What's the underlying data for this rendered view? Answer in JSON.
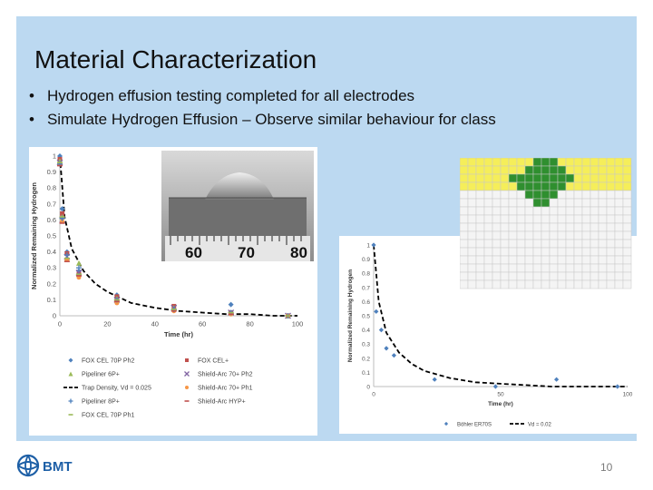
{
  "slide": {
    "title": "Material Characterization",
    "bullets": [
      "Hydrogen effusion testing completed for all electrodes",
      "Simulate Hydrogen Effusion – Observe similar behaviour for class"
    ],
    "page_number": "10",
    "logo_text": "BMT",
    "ruler_labels": [
      "60",
      "70",
      "80"
    ]
  },
  "colors": {
    "panel_bg": "#bcd9f1",
    "series_blue": "#4f81bd",
    "series_red": "#c0504d",
    "series_purple": "#8064a2",
    "series_orange": "#f79646",
    "series_green": "#9bbb59",
    "series_gray": "#7f7f7f",
    "fit_line": "#000000",
    "grid_yellow": "#f5ee5a",
    "grid_green": "#2f8f2f",
    "logo_blue": "#1d5fa6"
  },
  "chart_data": [
    {
      "type": "scatter",
      "xlabel": "Time (hr)",
      "ylabel": "Normalized Remaining Hydrogen",
      "xlim": [
        0,
        100
      ],
      "ylim": [
        0,
        1
      ],
      "xticks": [
        0,
        20,
        40,
        60,
        80,
        100
      ],
      "yticks": [
        0,
        0.1,
        0.2,
        0.3,
        0.4,
        0.5,
        0.6,
        0.7,
        0.8,
        0.9,
        1
      ],
      "legend_position": "bottom",
      "series": [
        {
          "name": "FOX CEL 70P Ph2",
          "marker": "diamond",
          "color": "#4f81bd",
          "x": [
            0,
            1,
            3,
            8,
            24,
            48,
            72,
            96
          ],
          "y": [
            1,
            0.67,
            0.4,
            0.28,
            0.13,
            0.04,
            0.07,
            0.0
          ]
        },
        {
          "name": "FOX CEL+",
          "marker": "square",
          "color": "#c0504d",
          "x": [
            0,
            1,
            3,
            8,
            24,
            48,
            72,
            96
          ],
          "y": [
            0.98,
            0.64,
            0.39,
            0.26,
            0.12,
            0.06,
            0.02,
            0.0
          ]
        },
        {
          "name": "Pipeliner 6P+",
          "marker": "triangle",
          "color": "#9bbb59",
          "x": [
            0,
            1,
            3,
            8,
            24,
            48,
            72,
            96
          ],
          "y": [
            0.97,
            0.62,
            0.36,
            0.33,
            0.11,
            0.05,
            0.02,
            0.0
          ]
        },
        {
          "name": "Shield-Arc 70+ Ph2",
          "marker": "x",
          "color": "#8064a2",
          "x": [
            0,
            1,
            3,
            8,
            24,
            48,
            72,
            96
          ],
          "y": [
            0.96,
            0.6,
            0.37,
            0.27,
            0.1,
            0.05,
            0.02,
            0.0
          ]
        },
        {
          "name": "Shield-Arc 70+ Ph1",
          "marker": "circle",
          "color": "#f79646",
          "x": [
            0,
            1,
            3,
            8,
            24,
            48,
            72,
            96
          ],
          "y": [
            0.95,
            0.59,
            0.35,
            0.24,
            0.08,
            0.03,
            0.01,
            0.0
          ]
        },
        {
          "name": "Pipeliner 8P+",
          "marker": "plus",
          "color": "#4f81bd",
          "x": [
            0,
            1,
            3,
            8,
            24,
            48,
            72,
            96
          ],
          "y": [
            0.95,
            0.61,
            0.38,
            0.3,
            0.1,
            0.04,
            0.02,
            0.0
          ]
        },
        {
          "name": "Shield-Arc HYP+",
          "marker": "dash",
          "color": "#c0504d",
          "x": [
            0,
            1,
            3,
            8,
            24,
            48,
            72,
            96
          ],
          "y": [
            0.94,
            0.58,
            0.34,
            0.25,
            0.09,
            0.03,
            0.01,
            0.0
          ]
        },
        {
          "name": "FOX CEL 70P Ph1",
          "marker": "dash",
          "color": "#9bbb59",
          "x": [
            0,
            1,
            3,
            8,
            24,
            48,
            72,
            96
          ],
          "y": [
            0.96,
            0.62,
            0.36,
            0.26,
            0.1,
            0.04,
            0.02,
            0.0
          ]
        }
      ],
      "fit_line": {
        "name": "Trap Density, Vd = 0.025",
        "style": "dashed",
        "x": [
          0,
          2,
          5,
          10,
          15,
          20,
          30,
          40,
          50,
          60,
          70,
          80,
          90,
          100
        ],
        "y": [
          1.0,
          0.62,
          0.42,
          0.28,
          0.2,
          0.15,
          0.08,
          0.05,
          0.03,
          0.02,
          0.01,
          0.01,
          0.0,
          0.0
        ]
      }
    },
    {
      "type": "scatter",
      "xlabel": "Time (hr)",
      "ylabel": "Normalized Remaining Hydrogen",
      "xlim": [
        0,
        100
      ],
      "ylim": [
        0,
        1
      ],
      "xticks": [
        0,
        50,
        100
      ],
      "yticks": [
        0,
        0.1,
        0.2,
        0.3,
        0.4,
        0.5,
        0.6,
        0.7,
        0.8,
        0.9,
        1
      ],
      "legend_position": "bottom",
      "series": [
        {
          "name": "Böhler ER70S",
          "marker": "diamond",
          "color": "#4f81bd",
          "x": [
            0,
            1,
            3,
            5,
            8,
            24,
            48,
            72,
            96
          ],
          "y": [
            1,
            0.53,
            0.4,
            0.27,
            0.22,
            0.05,
            0.0,
            0.05,
            0.0
          ]
        }
      ],
      "fit_line": {
        "name": "Vd = 0.02",
        "style": "dashed",
        "x": [
          0,
          2,
          5,
          10,
          15,
          20,
          30,
          40,
          50,
          60,
          70,
          80,
          90,
          100
        ],
        "y": [
          1.0,
          0.6,
          0.38,
          0.24,
          0.16,
          0.11,
          0.06,
          0.03,
          0.02,
          0.01,
          0.0,
          0.0,
          0.0,
          0.0
        ]
      }
    }
  ]
}
